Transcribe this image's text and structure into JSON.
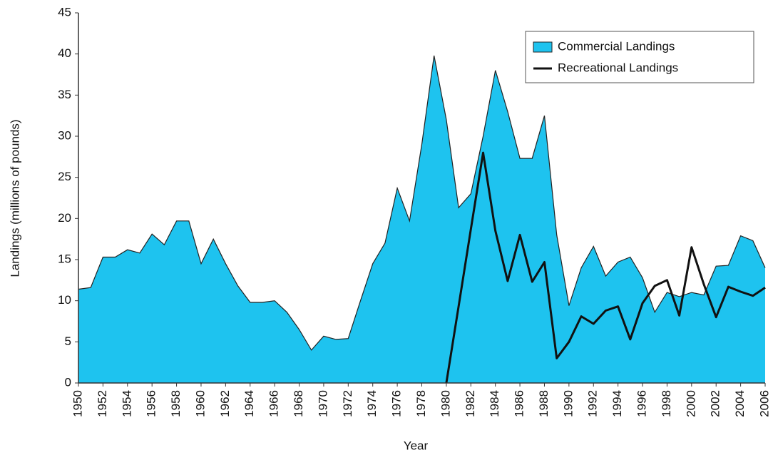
{
  "chart_data": {
    "type": "area",
    "x_label": "Year",
    "y_label": "Landings (millions of pounds)",
    "x": [
      1950,
      1951,
      1952,
      1953,
      1954,
      1955,
      1956,
      1957,
      1958,
      1959,
      1960,
      1961,
      1962,
      1963,
      1964,
      1965,
      1966,
      1967,
      1968,
      1969,
      1970,
      1971,
      1972,
      1973,
      1974,
      1975,
      1976,
      1977,
      1978,
      1979,
      1980,
      1981,
      1982,
      1983,
      1984,
      1985,
      1986,
      1987,
      1988,
      1989,
      1990,
      1991,
      1992,
      1993,
      1994,
      1995,
      1996,
      1997,
      1998,
      1999,
      2000,
      2001,
      2002,
      2003,
      2004,
      2005,
      2006
    ],
    "series": [
      {
        "name": "Commercial Landings",
        "type": "area",
        "color": "#1ec3ef",
        "values": [
          11.4,
          11.6,
          15.3,
          15.3,
          16.2,
          15.8,
          18.1,
          16.8,
          19.7,
          19.7,
          14.5,
          17.5,
          14.5,
          11.8,
          9.8,
          9.8,
          10,
          8.6,
          6.5,
          4,
          5.7,
          5.3,
          5.4,
          10,
          14.5,
          17,
          23.7,
          19.7,
          29,
          39.8,
          32,
          21.3,
          23,
          30,
          38,
          33,
          27.3,
          27.3,
          32.5,
          18,
          9.4,
          14,
          16.6,
          13,
          14.7,
          15.3,
          12.8,
          8.6,
          11,
          10.5,
          11,
          10.7,
          14.2,
          14.3,
          17.9,
          17.3,
          14
        ]
      },
      {
        "name": "Recreational Landings",
        "type": "line",
        "color": "#111111",
        "values": [
          null,
          null,
          null,
          null,
          null,
          null,
          null,
          null,
          null,
          null,
          null,
          null,
          null,
          null,
          null,
          null,
          null,
          null,
          null,
          null,
          null,
          null,
          null,
          null,
          null,
          null,
          null,
          null,
          null,
          null,
          0,
          9.3,
          18.7,
          28,
          18.5,
          12.4,
          18,
          12.3,
          14.7,
          3,
          5,
          8.1,
          7.2,
          8.8,
          9.3,
          5.3,
          9.7,
          11.8,
          12.5,
          8.2,
          16.5,
          12,
          8,
          11.7,
          11.1,
          10.6,
          11.6
        ]
      }
    ],
    "xlim": [
      1950,
      2006
    ],
    "xticks": [
      1950,
      1952,
      1954,
      1956,
      1958,
      1960,
      1962,
      1964,
      1966,
      1968,
      1970,
      1972,
      1974,
      1976,
      1978,
      1980,
      1982,
      1984,
      1986,
      1988,
      1990,
      1992,
      1994,
      1996,
      1998,
      2000,
      2002,
      2004,
      2006
    ],
    "ylim": [
      0,
      45
    ],
    "yticks": [
      0,
      5,
      10,
      15,
      20,
      25,
      30,
      35,
      40,
      45
    ]
  }
}
